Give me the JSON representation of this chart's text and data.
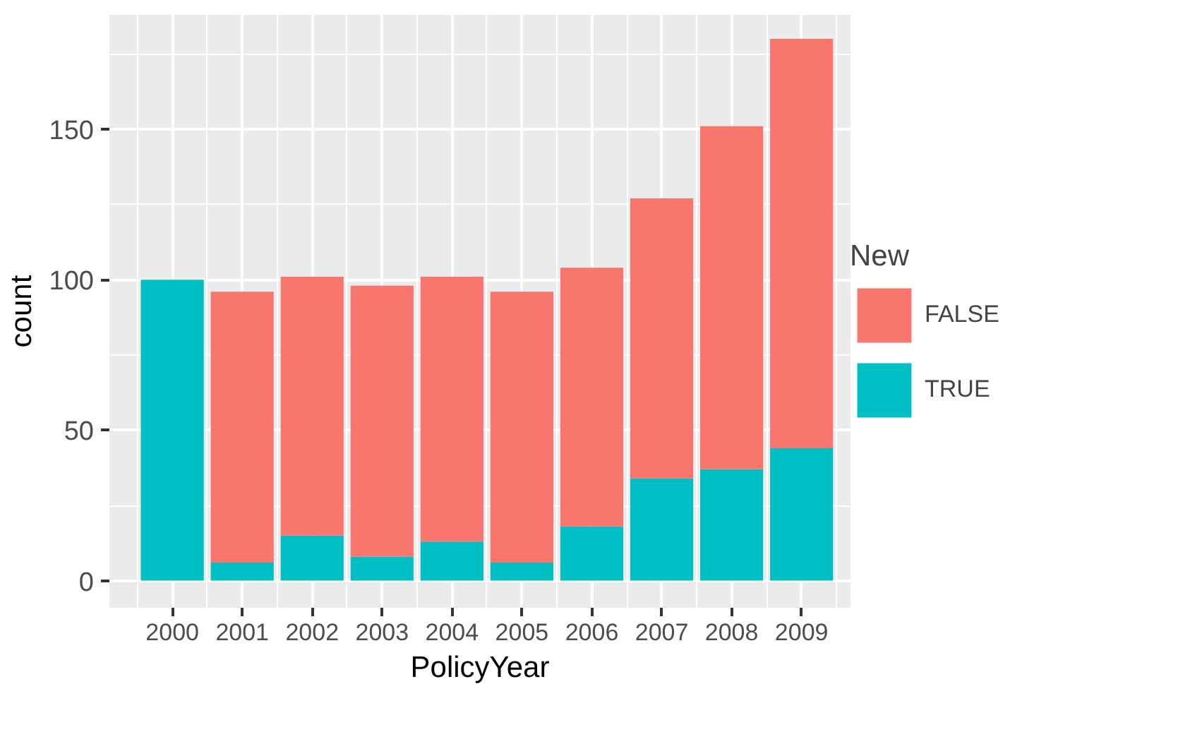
{
  "chart_data": {
    "type": "bar",
    "stacked": true,
    "xlabel": "PolicyYear",
    "ylabel": "count",
    "legend_title": "New",
    "legend": "right",
    "grid": true,
    "x": [
      2000,
      2001,
      2002,
      2003,
      2004,
      2005,
      2006,
      2007,
      2008,
      2009
    ],
    "xlim": [
      1999.1,
      2009.7
    ],
    "xticks": [
      2000,
      2001,
      2002,
      2003,
      2004,
      2005,
      2006,
      2007,
      2008,
      2009
    ],
    "ylim": [
      -9,
      188
    ],
    "yticks": [
      0,
      50,
      100,
      150
    ],
    "series": [
      {
        "name": "TRUE",
        "color": "#00bfc4",
        "values": [
          100,
          6,
          15,
          8,
          13,
          6,
          18,
          34,
          37,
          44
        ]
      },
      {
        "name": "FALSE",
        "color": "#f8766d",
        "values": [
          0,
          90,
          86,
          90,
          88,
          90,
          86,
          93,
          114,
          136
        ]
      }
    ]
  }
}
